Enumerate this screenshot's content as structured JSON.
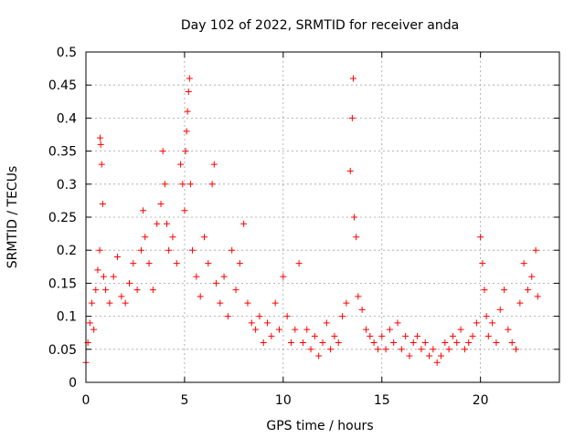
{
  "chart_data": {
    "type": "scatter",
    "title": "Day 102 of 2022, SRMTID for receiver anda",
    "xlabel": "GPS time / hours",
    "ylabel": "SRMTID / TECUs",
    "xlim": [
      0,
      24
    ],
    "ylim": [
      0,
      0.5
    ],
    "x_ticks": [
      0,
      5,
      10,
      15,
      20
    ],
    "x_tick_labels": [
      "0",
      "5",
      "10",
      "15",
      "20"
    ],
    "y_ticks": [
      0,
      0.05,
      0.1,
      0.15,
      0.2,
      0.25,
      0.3,
      0.35,
      0.4,
      0.45,
      0.5
    ],
    "y_tick_labels": [
      "0",
      "0.05",
      "0.1",
      "0.15",
      "0.2",
      "0.25",
      "0.3",
      "0.35",
      "0.4",
      "0.45",
      "0.5"
    ],
    "grid": true,
    "marker": "+",
    "color": "#ff0000",
    "series": [
      {
        "name": "SRMTID",
        "x": [
          0.0,
          0.1,
          0.2,
          0.3,
          0.4,
          0.5,
          0.6,
          0.7,
          0.72,
          0.75,
          0.8,
          0.85,
          0.9,
          1.0,
          1.2,
          1.4,
          1.6,
          1.8,
          2.0,
          2.2,
          2.4,
          2.6,
          2.8,
          2.9,
          3.0,
          3.2,
          3.4,
          3.6,
          3.8,
          3.9,
          4.0,
          4.1,
          4.2,
          4.4,
          4.6,
          4.8,
          4.9,
          5.0,
          5.05,
          5.1,
          5.15,
          5.2,
          5.25,
          5.3,
          5.4,
          5.6,
          5.8,
          6.0,
          6.2,
          6.4,
          6.5,
          6.6,
          6.8,
          7.0,
          7.2,
          7.4,
          7.6,
          7.8,
          8.0,
          8.2,
          8.4,
          8.6,
          8.8,
          9.0,
          9.2,
          9.4,
          9.6,
          9.8,
          10.0,
          10.2,
          10.4,
          10.6,
          10.8,
          11.0,
          11.2,
          11.4,
          11.6,
          11.8,
          12.0,
          12.2,
          12.4,
          12.6,
          12.8,
          13.0,
          13.2,
          13.4,
          13.5,
          13.55,
          13.6,
          13.7,
          13.8,
          14.0,
          14.2,
          14.4,
          14.6,
          14.8,
          15.0,
          15.2,
          15.4,
          15.6,
          15.8,
          16.0,
          16.2,
          16.4,
          16.6,
          16.8,
          17.0,
          17.2,
          17.4,
          17.6,
          17.8,
          18.0,
          18.2,
          18.4,
          18.6,
          18.8,
          19.0,
          19.2,
          19.4,
          19.6,
          19.8,
          20.0,
          20.1,
          20.2,
          20.3,
          20.4,
          20.6,
          20.8,
          21.0,
          21.2,
          21.4,
          21.6,
          21.8,
          22.0,
          22.2,
          22.4,
          22.6,
          22.8,
          22.9
        ],
        "y": [
          0.03,
          0.06,
          0.09,
          0.12,
          0.08,
          0.14,
          0.17,
          0.2,
          0.37,
          0.36,
          0.33,
          0.27,
          0.16,
          0.14,
          0.12,
          0.16,
          0.19,
          0.13,
          0.12,
          0.15,
          0.18,
          0.14,
          0.2,
          0.26,
          0.22,
          0.18,
          0.14,
          0.24,
          0.27,
          0.35,
          0.3,
          0.24,
          0.2,
          0.22,
          0.18,
          0.33,
          0.3,
          0.26,
          0.35,
          0.38,
          0.41,
          0.44,
          0.46,
          0.3,
          0.2,
          0.16,
          0.13,
          0.22,
          0.18,
          0.3,
          0.33,
          0.15,
          0.12,
          0.16,
          0.1,
          0.2,
          0.14,
          0.18,
          0.24,
          0.12,
          0.09,
          0.08,
          0.1,
          0.06,
          0.09,
          0.07,
          0.12,
          0.08,
          0.16,
          0.1,
          0.06,
          0.08,
          0.18,
          0.06,
          0.08,
          0.05,
          0.07,
          0.04,
          0.06,
          0.09,
          0.05,
          0.07,
          0.06,
          0.1,
          0.12,
          0.32,
          0.4,
          0.46,
          0.25,
          0.22,
          0.13,
          0.11,
          0.08,
          0.07,
          0.06,
          0.05,
          0.07,
          0.05,
          0.08,
          0.06,
          0.09,
          0.05,
          0.07,
          0.04,
          0.06,
          0.07,
          0.05,
          0.06,
          0.04,
          0.05,
          0.03,
          0.04,
          0.06,
          0.05,
          0.07,
          0.06,
          0.08,
          0.05,
          0.06,
          0.07,
          0.09,
          0.22,
          0.18,
          0.14,
          0.1,
          0.07,
          0.09,
          0.06,
          0.11,
          0.14,
          0.08,
          0.06,
          0.05,
          0.12,
          0.18,
          0.14,
          0.16,
          0.2,
          0.13
        ]
      }
    ]
  }
}
